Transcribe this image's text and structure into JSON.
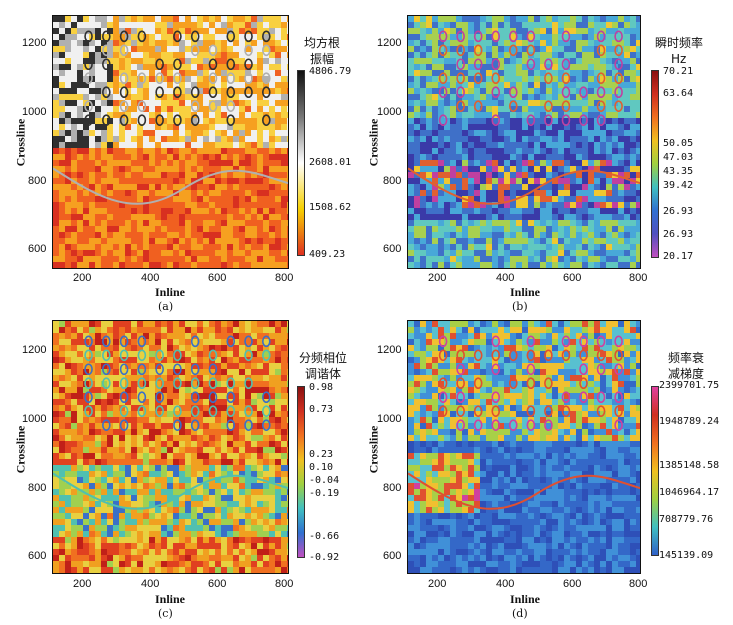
{
  "figure": {
    "panels": [
      {
        "id": "a",
        "caption": "(a)",
        "xlabel": "Inline",
        "ylabel": "Crossline",
        "xticks": [
          "200",
          "400",
          "600",
          "800"
        ],
        "yticks": [
          "1200",
          "1000",
          "800",
          "600"
        ],
        "colorbar_title_1": "均方根",
        "colorbar_title_2": "振幅",
        "colorbar_ticks": [
          "4806.79",
          "2608.01",
          "1508.62",
          "409.23"
        ],
        "colorbar_colors": [
          "#111111",
          "#777777",
          "#ffffff",
          "#f6d000",
          "#e03020"
        ],
        "map_palette": [
          "#d83020",
          "#f06020",
          "#f6a020",
          "#f8d040",
          "#f0f0f0",
          "#b0b0b0",
          "#303030"
        ]
      },
      {
        "id": "b",
        "caption": "(b)",
        "xlabel": "Inline",
        "ylabel": "Crossline",
        "xticks": [
          "200",
          "400",
          "600",
          "800"
        ],
        "yticks": [
          "1200",
          "1000",
          "800",
          "600"
        ],
        "colorbar_title_1": "瞬时频率",
        "colorbar_title_2": "Hz",
        "colorbar_ticks": [
          "70.21",
          "63.64",
          "50.05",
          "47.03",
          "43.35",
          "39.42",
          "26.93",
          "26.93",
          "20.17"
        ],
        "colorbar_colors": [
          "#8a1010",
          "#d03020",
          "#f07020",
          "#f0c020",
          "#a0d040",
          "#40c0c0",
          "#3070d0",
          "#5050c0",
          "#c050c0"
        ],
        "map_palette": [
          "#3a3aa8",
          "#3f70c8",
          "#48a8d8",
          "#60c8c0",
          "#a8d050",
          "#f0c830",
          "#e06030",
          "#c040a0"
        ]
      },
      {
        "id": "c",
        "caption": "(c)",
        "xlabel": "Inline",
        "ylabel": "Crossline",
        "xticks": [
          "200",
          "400",
          "600",
          "800"
        ],
        "yticks": [
          "1200",
          "1000",
          "800",
          "600"
        ],
        "colorbar_title_1": "分频相位",
        "colorbar_title_2": "调谐体",
        "colorbar_ticks": [
          "0.98",
          "0.73",
          "0.23",
          "0.10",
          "-0.04",
          "-0.19",
          "-0.66",
          "-0.92"
        ],
        "colorbar_colors": [
          "#8a1010",
          "#d03020",
          "#f07020",
          "#f0c020",
          "#a0d040",
          "#40c0c0",
          "#3070d0",
          "#c050c0"
        ],
        "map_palette": [
          "#c02018",
          "#e04020",
          "#f07020",
          "#f0a020",
          "#e8d040",
          "#a0d050",
          "#50c0b0",
          "#3a70c8"
        ]
      },
      {
        "id": "d",
        "caption": "(d)",
        "xlabel": "Inline",
        "ylabel": "Crossline",
        "xticks": [
          "200",
          "400",
          "600",
          "800"
        ],
        "yticks": [
          "1200",
          "1000",
          "800",
          "600"
        ],
        "colorbar_title_1": "频率衰",
        "colorbar_title_2": "减梯度",
        "colorbar_ticks": [
          "2399701.75",
          "1948789.24",
          "1385148.58",
          "1046964.17",
          "708779.76",
          "145139.09"
        ],
        "colorbar_colors": [
          "#e040a0",
          "#d03020",
          "#f07020",
          "#f0c020",
          "#a0d040",
          "#40c0c0",
          "#3060c8"
        ],
        "map_palette": [
          "#2e50b8",
          "#3468c8",
          "#4090d8",
          "#58c0d0",
          "#a8d048",
          "#f0c030",
          "#e05030",
          "#d040a0"
        ]
      }
    ]
  }
}
